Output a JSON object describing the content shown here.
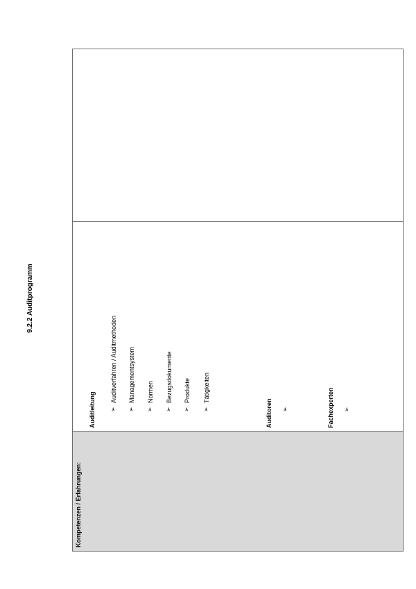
{
  "title": "9.2.2 Auditprogramm",
  "table": {
    "label_cell": "Kompetenzen / Erfahrungen:",
    "bullet_icon": "arrow-bullet-icon",
    "label_cell_color": "#d9d9d9",
    "sections": [
      {
        "heading": "Auditleitung",
        "items": [
          "Auditverfahren / Auditmethoden",
          "Managementsystem",
          "Normen",
          "Bezugsdokumente",
          "Produkte",
          "Tätigkeiten"
        ]
      },
      {
        "heading": "Auditoren",
        "items": [
          ""
        ]
      },
      {
        "heading": "Fachexperten",
        "items": [
          ""
        ]
      }
    ]
  }
}
